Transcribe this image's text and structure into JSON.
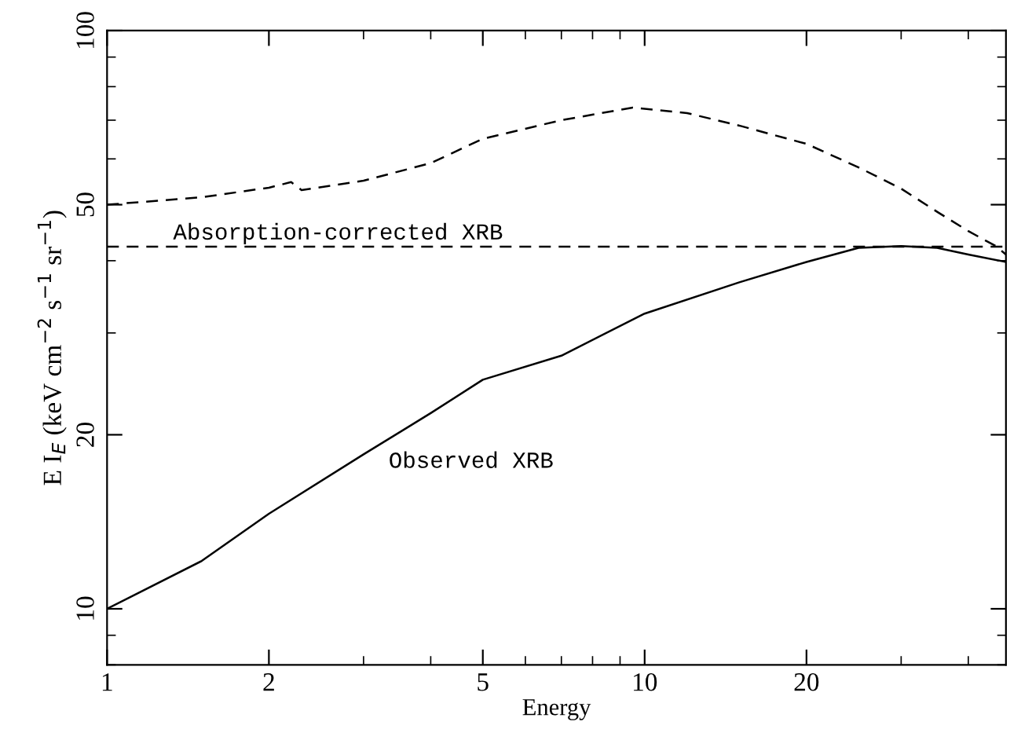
{
  "chart_data": {
    "type": "line",
    "xlabel": "Energy",
    "ylabel": "E I$_{E}$ (keV cm$^{−2}$ s$^{−1}$ sr$^{−1}$)",
    "log": "xy",
    "xlim": [
      1,
      47
    ],
    "ylim": [
      8,
      100
    ],
    "xticks": [
      1,
      2,
      5,
      10,
      20
    ],
    "yticks": [
      10,
      20,
      50,
      100
    ],
    "series": [
      {
        "color": "#000000",
        "line_style": "dashed",
        "x": [
          1,
          1.5,
          2,
          2.2,
          2.3,
          3,
          4,
          5,
          7,
          9.5,
          12,
          15,
          20,
          25,
          30,
          35,
          40,
          45,
          47
        ],
        "values": [
          50,
          51.5,
          53.5,
          54.7,
          53,
          55,
          59,
          65,
          70,
          73.6,
          72,
          68.5,
          63.7,
          58,
          53.3,
          48.6,
          45,
          42.4,
          41
        ]
      },
      {
        "color": "#000000",
        "line_style": "solid",
        "x": [
          1,
          1.5,
          2,
          3,
          4,
          5,
          7,
          10,
          15,
          20,
          25,
          30,
          35,
          40,
          47
        ],
        "values": [
          10,
          12.1,
          14.6,
          18.5,
          21.8,
          24.9,
          27.4,
          32.4,
          36.7,
          39.8,
          42.1,
          42.4,
          42.1,
          41,
          39.8
        ]
      }
    ],
    "ref_lines": [
      {
        "axis": "y",
        "value": 42.3,
        "line_style": "dashed",
        "color": "#000000"
      }
    ],
    "annotations": [
      "Absorption-corrected XRB",
      "Observed XRB"
    ]
  }
}
